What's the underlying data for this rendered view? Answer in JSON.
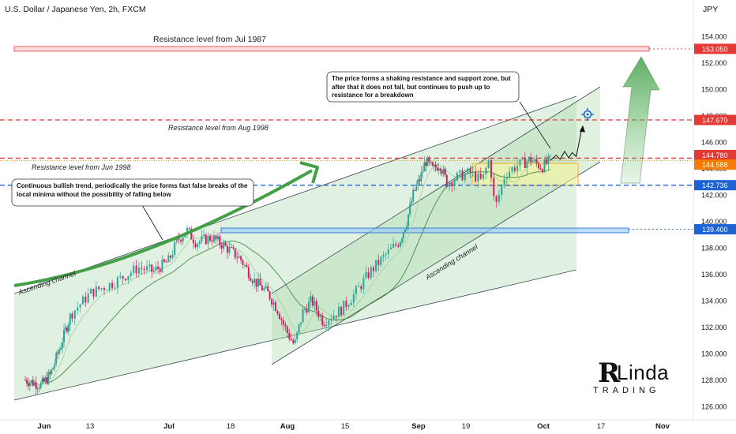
{
  "header": {
    "symbol_title": "U.S. Dollar / Japanese Yen, 2h, FXCM",
    "currency": "JPY"
  },
  "chart_data": {
    "type": "line",
    "title": "U.S. Dollar / Japanese Yen, 2h, FXCM",
    "ylabel": "JPY",
    "ylim": [
      125.5,
      155.5
    ],
    "y_ticks": [
      "126.000",
      "128.000",
      "130.000",
      "132.000",
      "134.000",
      "136.000",
      "138.000",
      "140.000",
      "142.000",
      "144.000",
      "146.000",
      "148.000",
      "150.000",
      "152.000",
      "154.000"
    ],
    "x_ticks": [
      {
        "label": "Jun",
        "bold": true,
        "idx": 0
      },
      {
        "label": "13",
        "bold": false,
        "idx": 1
      },
      {
        "label": "Jul",
        "bold": true,
        "idx": 2
      },
      {
        "label": "18",
        "bold": false,
        "idx": 3
      },
      {
        "label": "Aug",
        "bold": true,
        "idx": 4
      },
      {
        "label": "15",
        "bold": false,
        "idx": 5
      },
      {
        "label": "Sep",
        "bold": true,
        "idx": 6
      },
      {
        "label": "19",
        "bold": false,
        "idx": 7
      },
      {
        "label": "Oct",
        "bold": true,
        "idx": 8
      },
      {
        "label": "17",
        "bold": false,
        "idx": 9
      },
      {
        "label": "Nov",
        "bold": true,
        "idx": 10
      }
    ],
    "price_path": [
      [
        0,
        128.0
      ],
      [
        0.35,
        127.6
      ],
      [
        0.55,
        128.4
      ],
      [
        0.75,
        130.4
      ],
      [
        1.0,
        133.0
      ],
      [
        1.25,
        134.6
      ],
      [
        1.55,
        135.4
      ],
      [
        1.85,
        136.5
      ],
      [
        2.05,
        136.2
      ],
      [
        2.3,
        137.0
      ],
      [
        2.45,
        138.6
      ],
      [
        2.6,
        139.3
      ],
      [
        2.75,
        138.4
      ],
      [
        3.0,
        138.8
      ],
      [
        3.2,
        138.2
      ],
      [
        3.5,
        137.2
      ],
      [
        3.75,
        135.5
      ],
      [
        4.0,
        134.5
      ],
      [
        4.15,
        133.4
      ],
      [
        4.3,
        131.8
      ],
      [
        4.45,
        130.6
      ],
      [
        4.6,
        133.2
      ],
      [
        4.75,
        134.0
      ],
      [
        4.95,
        132.4
      ],
      [
        5.2,
        133.3
      ],
      [
        5.4,
        134.6
      ],
      [
        5.6,
        136.2
      ],
      [
        5.8,
        137.4
      ],
      [
        6.0,
        138.5
      ],
      [
        6.15,
        140.0
      ],
      [
        6.3,
        142.2
      ],
      [
        6.45,
        143.4
      ],
      [
        6.55,
        144.6
      ],
      [
        6.7,
        143.9
      ],
      [
        6.85,
        144.4
      ],
      [
        7.0,
        142.9
      ],
      [
        7.15,
        143.4
      ],
      [
        7.3,
        143.7
      ],
      [
        7.45,
        143.0
      ],
      [
        7.55,
        144.8
      ],
      [
        7.62,
        140.9
      ],
      [
        7.75,
        143.6
      ],
      [
        7.9,
        144.2
      ],
      [
        8.1,
        144.7
      ],
      [
        8.3,
        144.1
      ],
      [
        8.45,
        144.6
      ]
    ],
    "projection_path": [
      [
        8.45,
        144.6
      ],
      [
        8.55,
        145.0
      ],
      [
        8.62,
        144.7
      ],
      [
        8.7,
        145.3
      ],
      [
        8.77,
        144.8
      ],
      [
        8.83,
        145.2
      ],
      [
        8.9,
        144.9
      ],
      [
        9.0,
        147.1
      ]
    ],
    "levels": [
      {
        "name": "jul1987",
        "value": 153.05,
        "label": "153.050",
        "color": "#e53935",
        "text": "Resistance level from Jul 1987"
      },
      {
        "name": "aug1998",
        "value": 147.67,
        "label": "147.670",
        "color": "#e53935",
        "text": "Resistance level from Aug 1998"
      },
      {
        "name": "jun1998",
        "value": 144.78,
        "label": "144.780",
        "color": "#e53935",
        "text": "Resistance level from Jun 1998"
      },
      {
        "name": "current",
        "value": 144.588,
        "label": "144.588",
        "color": "#f57c00",
        "text": ""
      },
      {
        "name": "support142",
        "value": 142.736,
        "label": "142.736",
        "color": "#1e63d6",
        "text": ""
      },
      {
        "name": "support139",
        "value": 139.4,
        "label": "139.400",
        "color": "#1e63d6",
        "text": ""
      }
    ],
    "annotations": {
      "channel_1": "Ascending channel",
      "channel_2": "Ascending channel",
      "note_trend": "Continuous bullish trend, periodically the price forms fast false breaks of the local minima without the possibility of falling below",
      "note_zone": "The price forms a shaking resistance and support zone, but after that it does not fall, but continues to push up to resistance for a breakdown"
    },
    "grid": false,
    "legend": "none"
  },
  "brand": {
    "logo_text": "Linda",
    "logo_sub": "TRADING"
  },
  "colors": {
    "resistance": "#e53935",
    "support": "#1e63d6",
    "current_price": "#f57c00",
    "channel_fill": "#c8e6c9",
    "bull_arrow": "#43a047",
    "candle_up": "#26a69a",
    "candle_down": "#d81b60"
  }
}
